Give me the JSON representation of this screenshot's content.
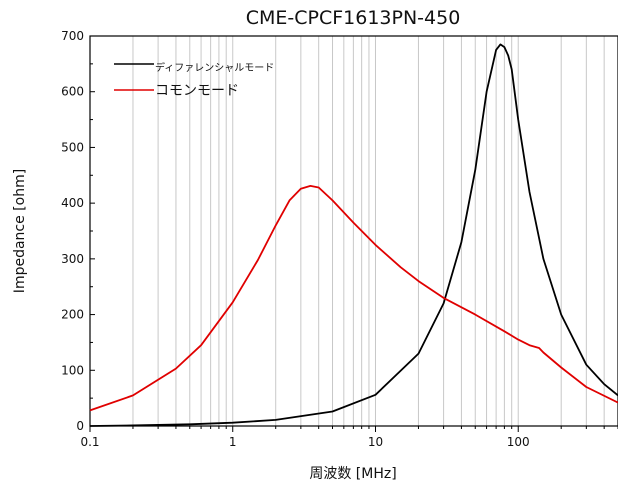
{
  "chart_data": {
    "type": "line",
    "title": "CME-CPCF1613PN-450",
    "xlabel": "周波数 [MHz]",
    "ylabel": "Impedance [ohm]",
    "x_scale": "log",
    "xlim": [
      0.1,
      500
    ],
    "ylim": [
      0,
      700
    ],
    "x_ticks": [
      0.1,
      1,
      10,
      100
    ],
    "x_tick_labels": [
      "0.1",
      "1",
      "10",
      "100"
    ],
    "y_ticks": [
      0,
      100,
      200,
      300,
      400,
      500,
      600,
      700
    ],
    "y_tick_labels": [
      "0",
      "100",
      "200",
      "300",
      "400",
      "500",
      "600",
      "700"
    ],
    "grid": "vertical minor and major lines on x axis",
    "legend_position": "top-left",
    "series": [
      {
        "name": "ディファレンシャルモード",
        "color": "#000000",
        "x": [
          0.1,
          0.2,
          0.5,
          1,
          2,
          5,
          10,
          20,
          30,
          40,
          50,
          60,
          70,
          75,
          80,
          85,
          90,
          100,
          120,
          150,
          200,
          300,
          400,
          500
        ],
        "y": [
          0,
          1,
          3,
          6,
          11,
          26,
          56,
          130,
          220,
          330,
          460,
          600,
          675,
          685,
          680,
          665,
          640,
          550,
          420,
          300,
          200,
          110,
          75,
          55
        ]
      },
      {
        "name": "コモンモード",
        "color": "#e00000",
        "x": [
          0.1,
          0.2,
          0.4,
          0.6,
          1,
          1.5,
          2,
          2.5,
          3,
          3.5,
          4,
          5,
          7,
          10,
          15,
          20,
          30,
          50,
          80,
          100,
          120,
          140,
          150,
          200,
          300,
          500
        ],
        "y": [
          28,
          55,
          103,
          145,
          222,
          298,
          360,
          405,
          426,
          431,
          428,
          405,
          365,
          325,
          285,
          260,
          230,
          200,
          170,
          155,
          145,
          140,
          132,
          105,
          70,
          42
        ]
      }
    ]
  }
}
